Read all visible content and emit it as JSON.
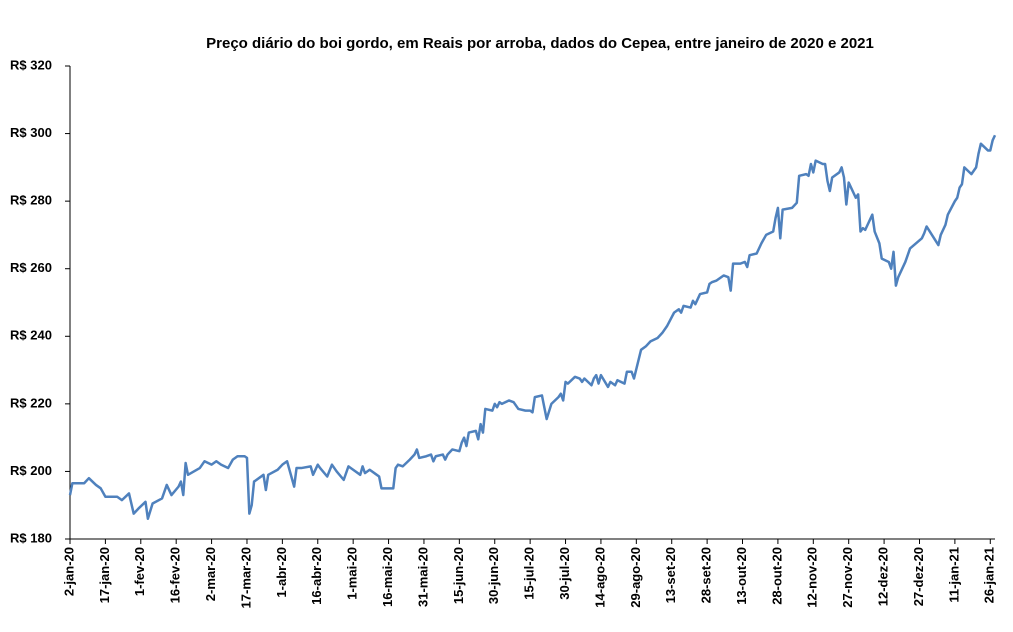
{
  "chart_data": {
    "type": "line",
    "title": "Preço diário do boi gordo, em Reais por arroba, dados do Cepea, entre janeiro de 2020 e 2021",
    "x": [
      "2020-01-02",
      "2020-01-03",
      "2020-01-08",
      "2020-01-10",
      "2020-01-13",
      "2020-01-15",
      "2020-01-17",
      "2020-01-22",
      "2020-01-24",
      "2020-01-27",
      "2020-01-29",
      "2020-01-31",
      "2020-02-03",
      "2020-02-04",
      "2020-02-06",
      "2020-02-10",
      "2020-02-12",
      "2020-02-14",
      "2020-02-17",
      "2020-02-18",
      "2020-02-19",
      "2020-02-20",
      "2020-02-21",
      "2020-02-26",
      "2020-02-28",
      "2020-03-02",
      "2020-03-04",
      "2020-03-06",
      "2020-03-09",
      "2020-03-11",
      "2020-03-13",
      "2020-03-16",
      "2020-03-17",
      "2020-03-18",
      "2020-03-19",
      "2020-03-20",
      "2020-03-24",
      "2020-03-25",
      "2020-03-26",
      "2020-03-30",
      "2020-04-01",
      "2020-04-03",
      "2020-04-06",
      "2020-04-07",
      "2020-04-09",
      "2020-04-13",
      "2020-04-14",
      "2020-04-16",
      "2020-04-17",
      "2020-04-20",
      "2020-04-22",
      "2020-04-24",
      "2020-04-27",
      "2020-04-29",
      "2020-05-01",
      "2020-05-04",
      "2020-05-05",
      "2020-05-06",
      "2020-05-08",
      "2020-05-11",
      "2020-05-12",
      "2020-05-13",
      "2020-05-15",
      "2020-05-18",
      "2020-05-19",
      "2020-05-20",
      "2020-05-22",
      "2020-05-25",
      "2020-05-27",
      "2020-05-28",
      "2020-05-29",
      "2020-06-01",
      "2020-06-03",
      "2020-06-04",
      "2020-06-05",
      "2020-06-08",
      "2020-06-09",
      "2020-06-10",
      "2020-06-12",
      "2020-06-15",
      "2020-06-16",
      "2020-06-17",
      "2020-06-18",
      "2020-06-19",
      "2020-06-22",
      "2020-06-23",
      "2020-06-24",
      "2020-06-25",
      "2020-06-26",
      "2020-06-29",
      "2020-06-30",
      "2020-07-01",
      "2020-07-02",
      "2020-07-03",
      "2020-07-06",
      "2020-07-08",
      "2020-07-10",
      "2020-07-13",
      "2020-07-15",
      "2020-07-16",
      "2020-07-17",
      "2020-07-20",
      "2020-07-21",
      "2020-07-22",
      "2020-07-24",
      "2020-07-27",
      "2020-07-28",
      "2020-07-29",
      "2020-07-30",
      "2020-07-31",
      "2020-08-03",
      "2020-08-05",
      "2020-08-06",
      "2020-08-07",
      "2020-08-10",
      "2020-08-11",
      "2020-08-12",
      "2020-08-13",
      "2020-08-14",
      "2020-08-17",
      "2020-08-18",
      "2020-08-20",
      "2020-08-21",
      "2020-08-24",
      "2020-08-25",
      "2020-08-27",
      "2020-08-28",
      "2020-08-31",
      "2020-09-02",
      "2020-09-04",
      "2020-09-07",
      "2020-09-09",
      "2020-09-11",
      "2020-09-14",
      "2020-09-16",
      "2020-09-17",
      "2020-09-18",
      "2020-09-21",
      "2020-09-22",
      "2020-09-23",
      "2020-09-25",
      "2020-09-28",
      "2020-09-29",
      "2020-09-30",
      "2020-10-02",
      "2020-10-05",
      "2020-10-07",
      "2020-10-08",
      "2020-10-09",
      "2020-10-12",
      "2020-10-14",
      "2020-10-15",
      "2020-10-16",
      "2020-10-19",
      "2020-10-21",
      "2020-10-23",
      "2020-10-26",
      "2020-10-27",
      "2020-10-28",
      "2020-10-29",
      "2020-10-30",
      "2020-11-03",
      "2020-11-05",
      "2020-11-06",
      "2020-11-09",
      "2020-11-10",
      "2020-11-11",
      "2020-11-12",
      "2020-11-13",
      "2020-11-16",
      "2020-11-17",
      "2020-11-18",
      "2020-11-19",
      "2020-11-20",
      "2020-11-23",
      "2020-11-24",
      "2020-11-25",
      "2020-11-26",
      "2020-11-27",
      "2020-11-30",
      "2020-12-01",
      "2020-12-02",
      "2020-12-03",
      "2020-12-04",
      "2020-12-07",
      "2020-12-08",
      "2020-12-10",
      "2020-12-11",
      "2020-12-14",
      "2020-12-15",
      "2020-12-16",
      "2020-12-17",
      "2020-12-18",
      "2020-12-21",
      "2020-12-22",
      "2020-12-23",
      "2020-12-28",
      "2020-12-29",
      "2020-12-30",
      "2021-01-04",
      "2021-01-05",
      "2021-01-07",
      "2021-01-08",
      "2021-01-11",
      "2021-01-12",
      "2021-01-13",
      "2021-01-14",
      "2021-01-15",
      "2021-01-18",
      "2021-01-19",
      "2021-01-20",
      "2021-01-21",
      "2021-01-22",
      "2021-01-25",
      "2021-01-26",
      "2021-01-27",
      "2021-01-28"
    ],
    "series": [
      {
        "color": "#4f81bd",
        "values": [
          193,
          196.5,
          196.5,
          198,
          196,
          195,
          192.5,
          192.5,
          191.5,
          193.5,
          187.5,
          189,
          191,
          186,
          190.5,
          192,
          196,
          193,
          195.5,
          197,
          193,
          202.5,
          199,
          201,
          203,
          202,
          203,
          202,
          201,
          203.5,
          204.5,
          204.5,
          204,
          187.5,
          190,
          197,
          199,
          194.5,
          199,
          200.5,
          202,
          203,
          195.5,
          201,
          201,
          201.5,
          199,
          202,
          201,
          198.5,
          202,
          200,
          197.5,
          201.5,
          200.5,
          199,
          201.5,
          199.5,
          200.5,
          199,
          198.5,
          195,
          195,
          195,
          201,
          202,
          201.5,
          203.5,
          205,
          206.5,
          204,
          204.5,
          205,
          203,
          204.5,
          205,
          203.5,
          205,
          206.5,
          206,
          208.5,
          210,
          207.5,
          211.5,
          212,
          209.5,
          214,
          211.5,
          218.5,
          218,
          220,
          219,
          220.5,
          220,
          221,
          220.5,
          218.5,
          218,
          218,
          217.5,
          222,
          222.5,
          219,
          215.5,
          220,
          222,
          223,
          221,
          226.5,
          226,
          228,
          227.5,
          226.5,
          227.5,
          225.5,
          227.5,
          228.5,
          226,
          228.5,
          225,
          226.5,
          225.5,
          227,
          226,
          229.5,
          229.5,
          227.5,
          236,
          237,
          238.5,
          239.5,
          241,
          243,
          247,
          248,
          247,
          249,
          248.5,
          250.5,
          249.5,
          252.5,
          253,
          255.5,
          256,
          256.5,
          258,
          257.5,
          253.5,
          261.5,
          261.5,
          262,
          260.5,
          264,
          264.5,
          267.5,
          270,
          271,
          275,
          278,
          269,
          277.5,
          278,
          279.5,
          287.5,
          288,
          287.5,
          291,
          288.5,
          292,
          291,
          291,
          286,
          283,
          287,
          288.5,
          290,
          287,
          279,
          285.5,
          281,
          282,
          271,
          272,
          271.5,
          276,
          271,
          267.5,
          263,
          262,
          260,
          265,
          255,
          257.5,
          262,
          264,
          266,
          269,
          270.5,
          272.5,
          267,
          270,
          273,
          276,
          280,
          281,
          284,
          285,
          290,
          288,
          289,
          290,
          294,
          297,
          295,
          295,
          298,
          299.5
        ]
      }
    ],
    "xlim": [
      "2020-01-02",
      "2021-01-28"
    ],
    "xticks": [
      {
        "value": "2020-01-02",
        "label": "2-jan-20"
      },
      {
        "value": "2020-01-17",
        "label": "17-jan-20"
      },
      {
        "value": "2020-02-01",
        "label": "1-fev-20"
      },
      {
        "value": "2020-02-16",
        "label": "16-fev-20"
      },
      {
        "value": "2020-03-02",
        "label": "2-mar-20"
      },
      {
        "value": "2020-03-17",
        "label": "17-mar-20"
      },
      {
        "value": "2020-04-01",
        "label": "1-abr-20"
      },
      {
        "value": "2020-04-16",
        "label": "16-abr-20"
      },
      {
        "value": "2020-05-01",
        "label": "1-mai-20"
      },
      {
        "value": "2020-05-16",
        "label": "16-mai-20"
      },
      {
        "value": "2020-05-31",
        "label": "31-mai-20"
      },
      {
        "value": "2020-06-15",
        "label": "15-jun-20"
      },
      {
        "value": "2020-06-30",
        "label": "30-jun-20"
      },
      {
        "value": "2020-07-15",
        "label": "15-jul-20"
      },
      {
        "value": "2020-07-30",
        "label": "30-jul-20"
      },
      {
        "value": "2020-08-14",
        "label": "14-ago-20"
      },
      {
        "value": "2020-08-29",
        "label": "29-ago-20"
      },
      {
        "value": "2020-09-13",
        "label": "13-set-20"
      },
      {
        "value": "2020-09-28",
        "label": "28-set-20"
      },
      {
        "value": "2020-10-13",
        "label": "13-out-20"
      },
      {
        "value": "2020-10-28",
        "label": "28-out-20"
      },
      {
        "value": "2020-11-12",
        "label": "12-nov-20"
      },
      {
        "value": "2020-11-27",
        "label": "27-nov-20"
      },
      {
        "value": "2020-12-12",
        "label": "12-dez-20"
      },
      {
        "value": "2020-12-27",
        "label": "27-dez-20"
      },
      {
        "value": "2021-01-11",
        "label": "11-jan-21"
      },
      {
        "value": "2021-01-26",
        "label": "26-jan-21"
      }
    ],
    "ylim": [
      180,
      320
    ],
    "yticks": [
      {
        "value": 180,
        "label": "R$ 180"
      },
      {
        "value": 200,
        "label": "R$ 200"
      },
      {
        "value": 220,
        "label": "R$ 220"
      },
      {
        "value": 240,
        "label": "R$ 240"
      },
      {
        "value": 260,
        "label": "R$ 260"
      },
      {
        "value": 280,
        "label": "R$ 280"
      },
      {
        "value": 300,
        "label": "R$ 300"
      },
      {
        "value": 320,
        "label": "R$ 320"
      }
    ],
    "grid": false
  }
}
